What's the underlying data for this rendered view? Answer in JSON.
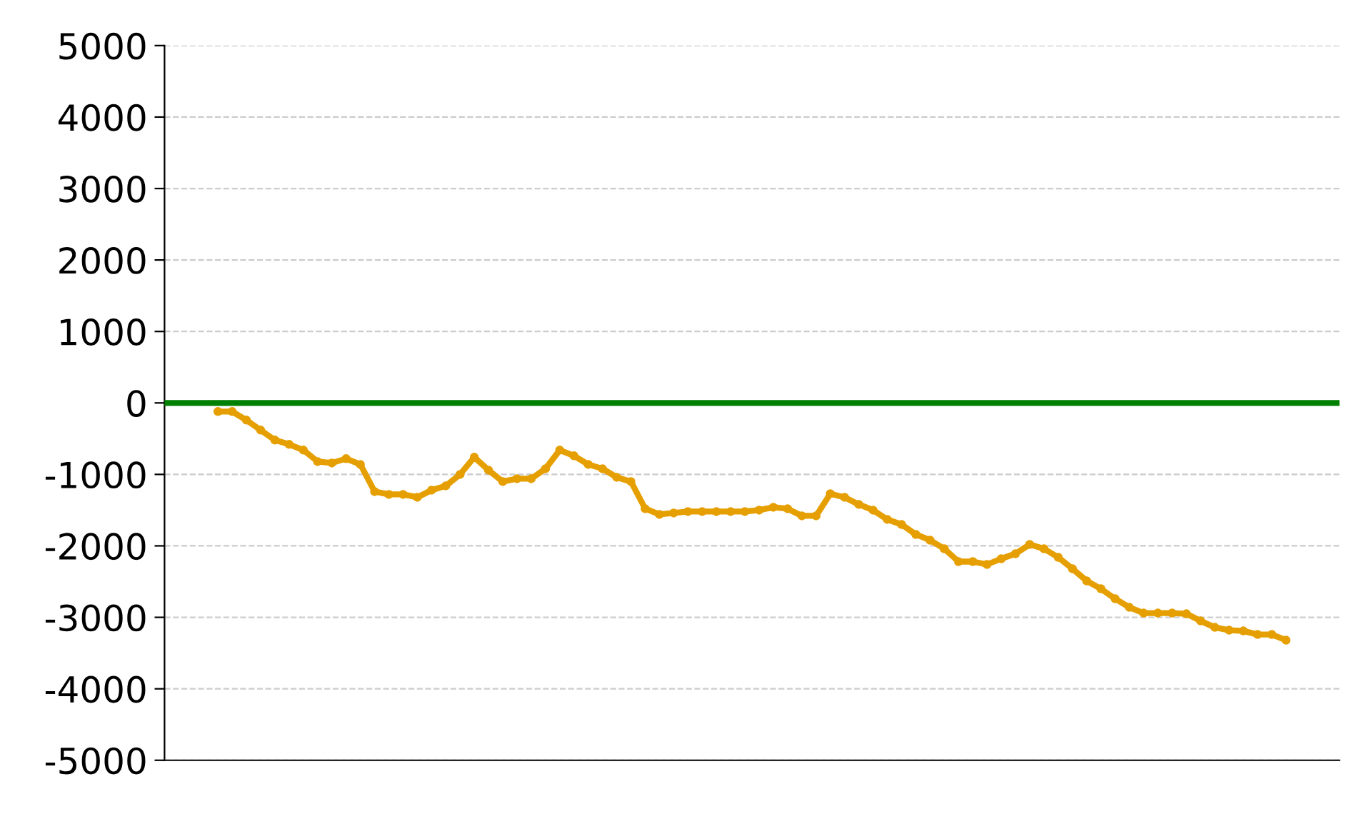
{
  "chart_data": {
    "type": "line",
    "categories": [
      null,
      null,
      null,
      null,
      null,
      null,
      null,
      null,
      null,
      null,
      null,
      null,
      null,
      null,
      null,
      null,
      null,
      null,
      null,
      null,
      null,
      null,
      null,
      null,
      null,
      null,
      null,
      null,
      null,
      null,
      null,
      null,
      null,
      null,
      null,
      null,
      null,
      null,
      null,
      null,
      null,
      null,
      null,
      null,
      null,
      null,
      null,
      null,
      null,
      null,
      null,
      null,
      null,
      null,
      null,
      null,
      null,
      null,
      null,
      null,
      null,
      null,
      null,
      null,
      null,
      null,
      null,
      null,
      null,
      null,
      null,
      null,
      null,
      null,
      null,
      null
    ],
    "series": [
      {
        "color": "#e69f00",
        "values": [
          -120,
          -120,
          -240,
          -380,
          -520,
          -580,
          -660,
          -820,
          -840,
          -780,
          -860,
          -1240,
          -1280,
          -1280,
          -1320,
          -1220,
          -1160,
          -1000,
          -760,
          -940,
          -1100,
          -1060,
          -1060,
          -920,
          -660,
          -740,
          -860,
          -920,
          -1040,
          -1100,
          -1480,
          -1560,
          -1540,
          -1520,
          -1520,
          -1520,
          -1520,
          -1520,
          -1500,
          -1460,
          -1480,
          -1580,
          -1580,
          -1270,
          -1320,
          -1420,
          -1500,
          -1630,
          -1700,
          -1840,
          -1920,
          -2040,
          -2220,
          -2220,
          -2260,
          -2180,
          -2110,
          -1980,
          -2040,
          -2160,
          -2320,
          -2490,
          -2600,
          -2740,
          -2860,
          -2940,
          -2940,
          -2940,
          -2950,
          -3050,
          -3140,
          -3180,
          -3190,
          -3240,
          -3240,
          -3320
        ]
      }
    ],
    "ylim": [
      -5000,
      5000
    ],
    "yticks": [
      -5000,
      -4000,
      -3000,
      -2000,
      -1000,
      0,
      1000,
      2000,
      3000,
      4000,
      5000
    ],
    "ref_lines": [
      {
        "axis": "y",
        "value": 0,
        "color": "#008000",
        "line_style": "solid"
      }
    ],
    "grid": "y",
    "marker": "circle",
    "line_style": "solid",
    "tick_labels": "y"
  }
}
